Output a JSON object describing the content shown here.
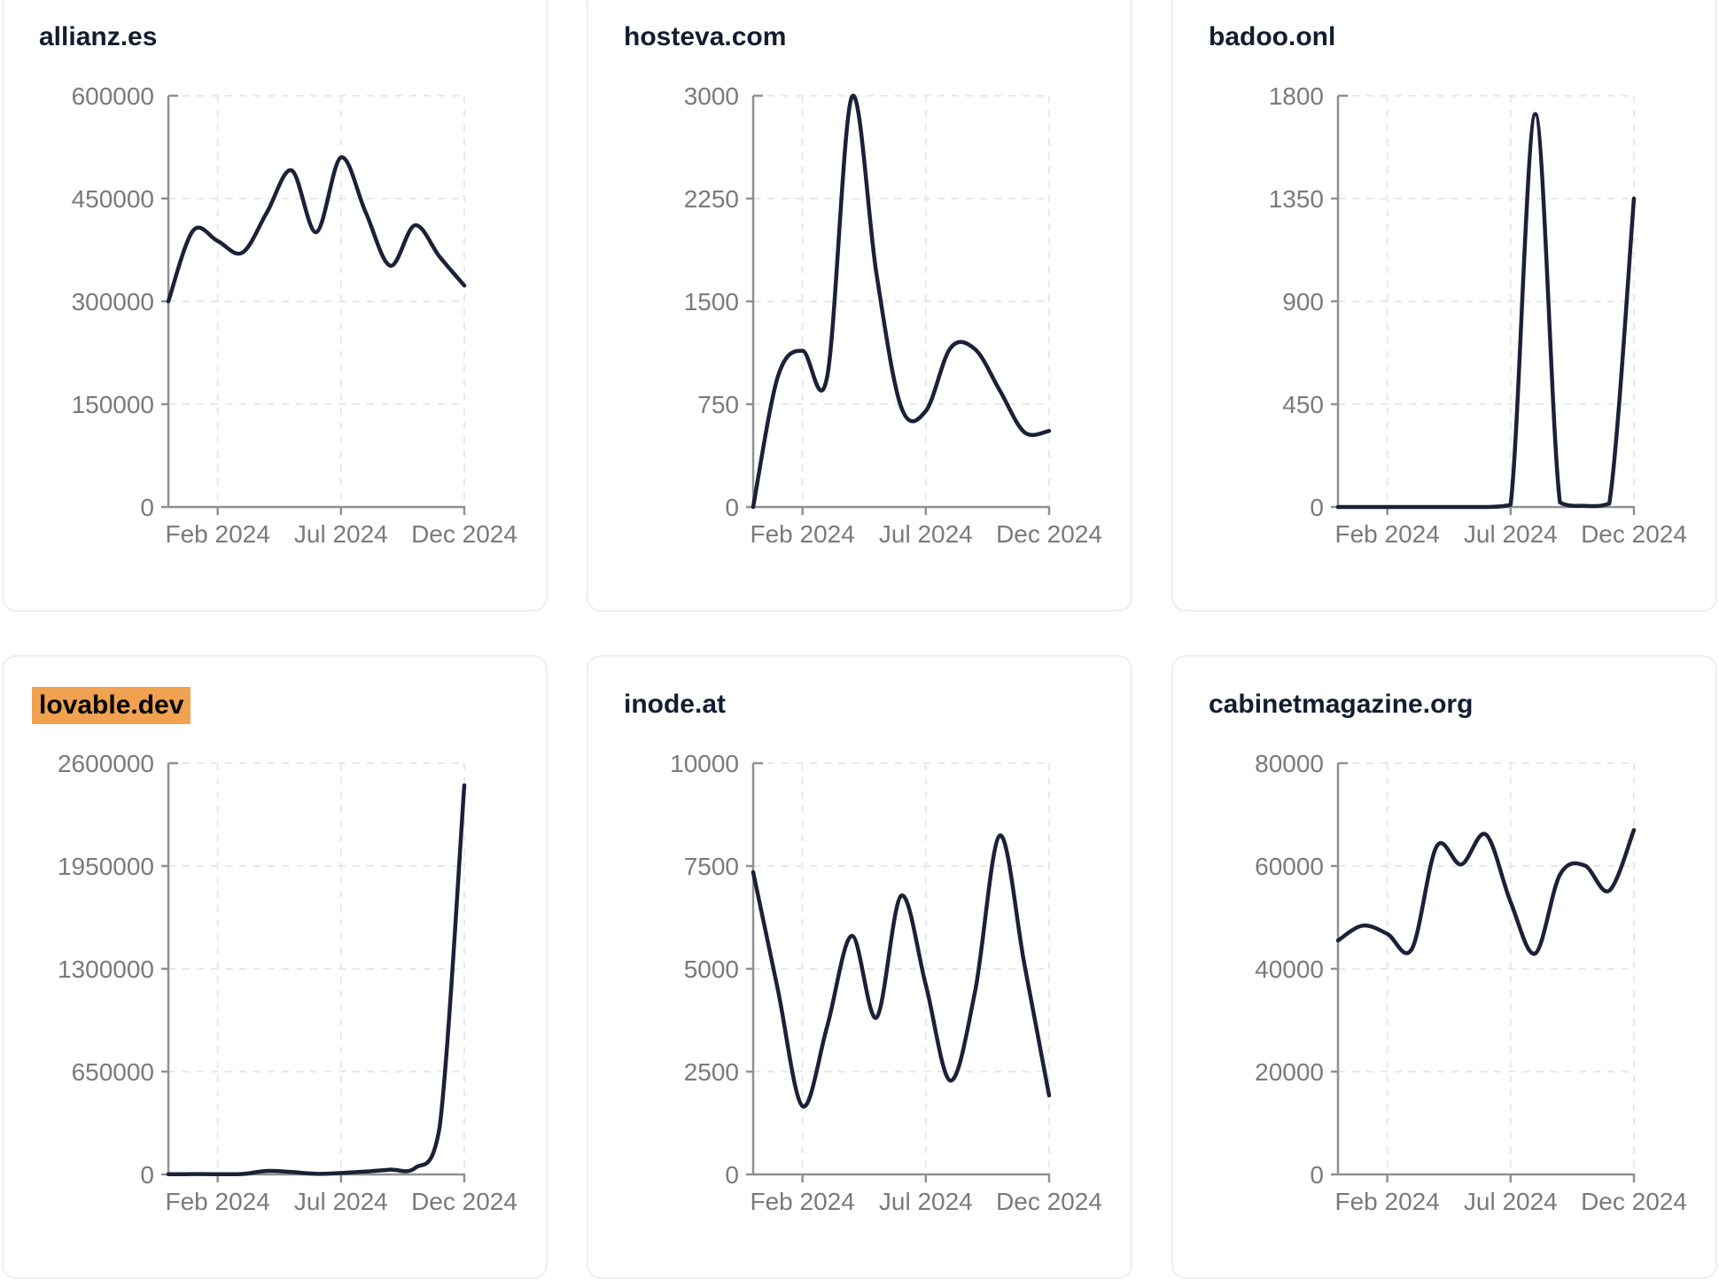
{
  "page": {
    "background": "#ffffff"
  },
  "theme": {
    "line_color": "#1b2137",
    "title_color": "#131c31",
    "highlight_color": "#f0a250",
    "highlight_text_color": "#000000",
    "tick_label_color": "#7a7a7a",
    "axis_color": "#909090",
    "grid_color": "#e8e8e8",
    "card_border": "#edeff3",
    "card_bg": "#ffffff"
  },
  "cards": [
    {
      "title": "allianz.es",
      "highlighted": false
    },
    {
      "title": "hosteva.com",
      "highlighted": false
    },
    {
      "title": "badoo.onl",
      "highlighted": false
    },
    {
      "title": "lovable.dev",
      "highlighted": true
    },
    {
      "title": "inode.at",
      "highlighted": false
    },
    {
      "title": "cabinetmagazine.org",
      "highlighted": false
    }
  ],
  "chart_data": [
    {
      "type": "line",
      "title": "allianz.es",
      "x": [
        "Dec 2023",
        "Jan 2024",
        "Feb 2024",
        "Mar 2024",
        "Apr 2024",
        "May 2024",
        "Jun 2024",
        "Jul 2024",
        "Aug 2024",
        "Sep 2024",
        "Oct 2024",
        "Nov 2024",
        "Dec 2024"
      ],
      "values": [
        300000,
        403000,
        388000,
        371000,
        430000,
        491000,
        401000,
        510000,
        430000,
        352000,
        411000,
        365000,
        323000
      ],
      "ylim": [
        0,
        600000
      ],
      "y_ticks": [
        0,
        150000,
        300000,
        450000,
        600000
      ],
      "x_tick_labels": [
        "Feb 2024",
        "Jul 2024",
        "Dec 2024"
      ],
      "x_tick_indices": [
        2,
        7,
        12
      ],
      "grid": true,
      "legend": false
    },
    {
      "type": "line",
      "title": "hosteva.com",
      "x": [
        "Dec 2023",
        "Jan 2024",
        "Feb 2024",
        "Mar 2024",
        "Apr 2024",
        "May 2024",
        "Jun 2024",
        "Jul 2024",
        "Aug 2024",
        "Sep 2024",
        "Oct 2024",
        "Nov 2024",
        "Dec 2024"
      ],
      "values": [
        0,
        950,
        1140,
        950,
        2990,
        1700,
        730,
        700,
        1160,
        1150,
        850,
        545,
        555
      ],
      "ylim": [
        0,
        3000
      ],
      "y_ticks": [
        0,
        750,
        1500,
        2250,
        3000
      ],
      "x_tick_labels": [
        "Feb 2024",
        "Jul 2024",
        "Dec 2024"
      ],
      "x_tick_indices": [
        2,
        7,
        12
      ],
      "grid": true,
      "legend": false
    },
    {
      "type": "line",
      "title": "badoo.onl",
      "x": [
        "Dec 2023",
        "Jan 2024",
        "Feb 2024",
        "Mar 2024",
        "Apr 2024",
        "May 2024",
        "Jun 2024",
        "Jul 2024",
        "Aug 2024",
        "Sep 2024",
        "Oct 2024",
        "Nov 2024",
        "Dec 2024"
      ],
      "values": [
        0,
        0,
        0,
        0,
        0,
        0,
        0,
        10,
        1720,
        20,
        5,
        15,
        1350
      ],
      "ylim": [
        0,
        1800
      ],
      "y_ticks": [
        0,
        450,
        900,
        1350,
        1800
      ],
      "x_tick_labels": [
        "Feb 2024",
        "Jul 2024",
        "Dec 2024"
      ],
      "x_tick_indices": [
        2,
        7,
        12
      ],
      "grid": true,
      "legend": false
    },
    {
      "type": "line",
      "title": "lovable.dev",
      "x": [
        "Dec 2023",
        "Jan 2024",
        "Feb 2024",
        "Mar 2024",
        "Apr 2024",
        "May 2024",
        "Jun 2024",
        "Jul 2024",
        "Aug 2024",
        "Sep 2024",
        "Oct 2024",
        "Nov 2024",
        "Dec 2024"
      ],
      "values": [
        1000,
        2000,
        1500,
        3000,
        22000,
        15000,
        4000,
        9000,
        18000,
        30000,
        40000,
        300000,
        2460000
      ],
      "ylim": [
        0,
        2600000
      ],
      "y_ticks": [
        0,
        650000,
        1300000,
        1950000,
        2600000
      ],
      "x_tick_labels": [
        "Feb 2024",
        "Jul 2024",
        "Dec 2024"
      ],
      "x_tick_indices": [
        2,
        7,
        12
      ],
      "grid": true,
      "legend": false
    },
    {
      "type": "line",
      "title": "inode.at",
      "x": [
        "Dec 2023",
        "Jan 2024",
        "Feb 2024",
        "Mar 2024",
        "Apr 2024",
        "May 2024",
        "Jun 2024",
        "Jul 2024",
        "Aug 2024",
        "Sep 2024",
        "Oct 2024",
        "Nov 2024",
        "Dec 2024"
      ],
      "values": [
        7350,
        4500,
        1660,
        3600,
        5800,
        3815,
        6775,
        4610,
        2280,
        4460,
        8240,
        5100,
        1920
      ],
      "ylim": [
        0,
        10000
      ],
      "y_ticks": [
        0,
        2500,
        5000,
        7500,
        10000
      ],
      "x_tick_labels": [
        "Feb 2024",
        "Jul 2024",
        "Dec 2024"
      ],
      "x_tick_indices": [
        2,
        7,
        12
      ],
      "grid": true,
      "legend": false
    },
    {
      "type": "line",
      "title": "cabinetmagazine.org",
      "x": [
        "Dec 2023",
        "Jan 2024",
        "Feb 2024",
        "Mar 2024",
        "Apr 2024",
        "May 2024",
        "Jun 2024",
        "Jul 2024",
        "Aug 2024",
        "Sep 2024",
        "Oct 2024",
        "Nov 2024",
        "Dec 2024"
      ],
      "values": [
        45500,
        48400,
        46800,
        43900,
        63800,
        60300,
        66100,
        53000,
        43000,
        58300,
        60100,
        55200,
        67000
      ],
      "ylim": [
        0,
        80000
      ],
      "y_ticks": [
        0,
        20000,
        40000,
        60000,
        80000
      ],
      "x_tick_labels": [
        "Feb 2024",
        "Jul 2024",
        "Dec 2024"
      ],
      "x_tick_indices": [
        2,
        7,
        12
      ],
      "grid": true,
      "legend": false
    }
  ],
  "layout_note": "grid of 6 sparkline cards, 3 columns x 2 rows"
}
